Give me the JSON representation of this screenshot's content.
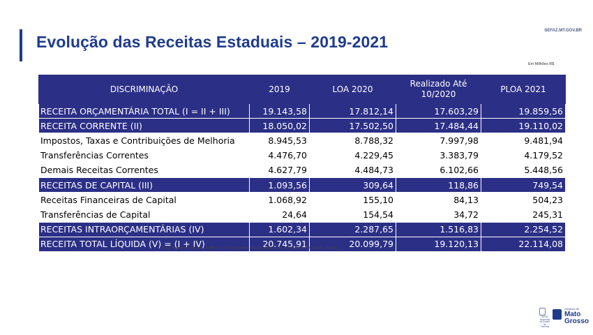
{
  "slide": {
    "title": "Evolução das Receitas Estaduais – 2019-2021",
    "site": "SEFAZ.MT.GOV.BR",
    "unit_note": "Em Milhões R$",
    "source": "Fonte: Relatórios FIPLAN – PLAN 72 e FIP 729 emitidos em 23/11/2020. LDO 2020 e 2021, PLOA 2021 – SEFAZ."
  },
  "table": {
    "headers": [
      "DISCRIMINAÇÃO",
      "2019",
      "LOA 2020",
      "Realizado Até 10/2020",
      "PLOA 2021"
    ],
    "rows": [
      {
        "label": "RECEITA ORÇAMENTÁRIA TOTAL (I = II + III)",
        "values": [
          "19.143,58",
          "17.812,14",
          "17.603,29",
          "19.859,56"
        ],
        "highlight": true
      },
      {
        "label": "RECEITA CORRENTE (II)",
        "values": [
          "18.050,02",
          "17.502,50",
          "17.484,44",
          "19.110,02"
        ],
        "highlight": true
      },
      {
        "label": "Impostos, Taxas e Contribuições de Melhoria",
        "values": [
          "8.945,53",
          "8.788,32",
          "7.997,98",
          "9.481,94"
        ],
        "highlight": false
      },
      {
        "label": "Transferências Correntes",
        "values": [
          "4.476,70",
          "4.229,45",
          "3.383,79",
          "4.179,52"
        ],
        "highlight": false
      },
      {
        "label": "Demais Receitas Correntes",
        "values": [
          "4.627,79",
          "4.484,73",
          "6.102,66",
          "5.448,56"
        ],
        "highlight": false
      },
      {
        "label": "RECEITAS DE CAPITAL (III)",
        "values": [
          "1.093,56",
          "309,64",
          "118,86",
          "749,54"
        ],
        "highlight": true
      },
      {
        "label": "Receitas Financeiras de Capital",
        "values": [
          "1.068,92",
          "155,10",
          "84,13",
          "504,23"
        ],
        "highlight": false
      },
      {
        "label": "Transferências de Capital",
        "values": [
          "24,64",
          "154,54",
          "34,72",
          "245,31"
        ],
        "highlight": false
      },
      {
        "label": "RECEITAS INTRAORÇAMENTÁRIAS (IV)",
        "values": [
          "1.602,34",
          "2.287,65",
          "1.516,83",
          "2.254,52"
        ],
        "highlight": true
      },
      {
        "label": "RECEITA TOTAL LÍQUIDA (V) = (I + IV)",
        "values": [
          "20.745,91",
          "20.099,79",
          "19.120,13",
          "22.114,08"
        ],
        "highlight": true
      }
    ]
  },
  "logos": {
    "sefaz_text": "SEFAZ Secretaria de Estado de Fazenda",
    "gov_small": "Governo de",
    "gov_line1": "Mato",
    "gov_line2": "Grosso"
  },
  "colors": {
    "title": "#1f3c8c",
    "table_header": "#2b2f86",
    "accent_bar": "#1f3c8c"
  }
}
